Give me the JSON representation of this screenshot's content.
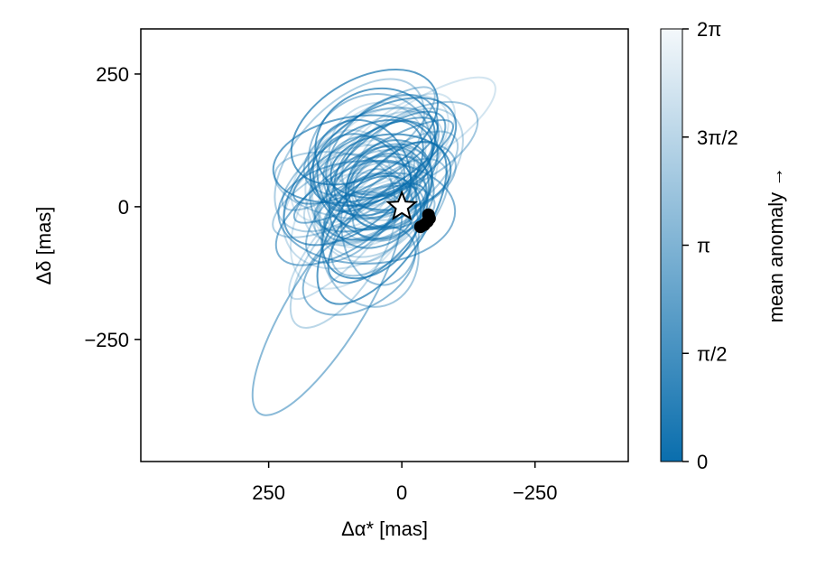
{
  "chart_data": {
    "type": "line",
    "subtype": "orbit-plot",
    "xlabel": "Δα* [mas]",
    "ylabel": "Δδ [mas]",
    "x_reversed": true,
    "xlim": [
      490,
      -425
    ],
    "ylim": [
      -480,
      335
    ],
    "x_ticks": [
      250,
      0,
      -250
    ],
    "x_tick_labels": [
      "250",
      "0",
      "−250"
    ],
    "y_ticks": [
      250,
      0,
      -250
    ],
    "y_tick_labels": [
      "250",
      "0",
      "−250"
    ],
    "grid": false,
    "star": {
      "x": 0,
      "y": 0,
      "marker": "star"
    },
    "observations": {
      "color": "#000000",
      "points": [
        {
          "x": -50,
          "y": -15
        },
        {
          "x": -52,
          "y": -22
        },
        {
          "x": -48,
          "y": -28
        },
        {
          "x": -42,
          "y": -34
        },
        {
          "x": -35,
          "y": -38
        }
      ]
    },
    "orbits": {
      "count": 60,
      "color": "#0a6ead",
      "description": "Orbit samples colored by mean anomaly, fading from blue to white",
      "ellipses": [
        {
          "cx": 60,
          "cy": 90,
          "rx": 170,
          "ry": 85,
          "angle": -35
        },
        {
          "cx": -15,
          "cy": 110,
          "rx": 140,
          "ry": 65,
          "angle": -28
        },
        {
          "cx": 30,
          "cy": 70,
          "rx": 110,
          "ry": 75,
          "angle": -40
        },
        {
          "cx": 85,
          "cy": 20,
          "rx": 95,
          "ry": 125,
          "angle": -10
        },
        {
          "cx": -5,
          "cy": 55,
          "rx": 100,
          "ry": 60,
          "angle": -20
        },
        {
          "cx": 45,
          "cy": -50,
          "rx": 120,
          "ry": 55,
          "angle": -45
        },
        {
          "cx": 110,
          "cy": -100,
          "rx": 150,
          "ry": 60,
          "angle": -55
        },
        {
          "cx": 140,
          "cy": -185,
          "rx": 240,
          "ry": 70,
          "angle": -58
        },
        {
          "cx": 70,
          "cy": 150,
          "rx": 150,
          "ry": 90,
          "angle": -30
        },
        {
          "cx": 110,
          "cy": 40,
          "rx": 130,
          "ry": 60,
          "angle": 10
        },
        {
          "cx": 20,
          "cy": 30,
          "rx": 80,
          "ry": 70,
          "angle": 0
        },
        {
          "cx": -30,
          "cy": 140,
          "rx": 170,
          "ry": 55,
          "angle": -33
        },
        {
          "cx": 60,
          "cy": -80,
          "rx": 90,
          "ry": 110,
          "angle": -15
        },
        {
          "cx": 30,
          "cy": 85,
          "rx": 135,
          "ry": 55,
          "angle": -38
        },
        {
          "cx": 90,
          "cy": -40,
          "rx": 175,
          "ry": 45,
          "angle": -48
        },
        {
          "cx": 25,
          "cy": -10,
          "rx": 70,
          "ry": 50,
          "angle": -25
        },
        {
          "cx": 75,
          "cy": 60,
          "rx": 90,
          "ry": 105,
          "angle": -20
        },
        {
          "cx": -10,
          "cy": 80,
          "rx": 125,
          "ry": 80,
          "angle": -45
        },
        {
          "cx": 80,
          "cy": -120,
          "rx": 115,
          "ry": 70,
          "angle": -30
        },
        {
          "cx": 50,
          "cy": 120,
          "rx": 115,
          "ry": 100,
          "angle": -25
        }
      ]
    },
    "colorbar": {
      "label": "mean anomaly →",
      "range": [
        0,
        6.2832
      ],
      "ticks": [
        "0",
        "π/2",
        "π",
        "3π/2",
        "2π"
      ],
      "colors": [
        "#0a6ead",
        "#f4f8fb"
      ]
    }
  }
}
